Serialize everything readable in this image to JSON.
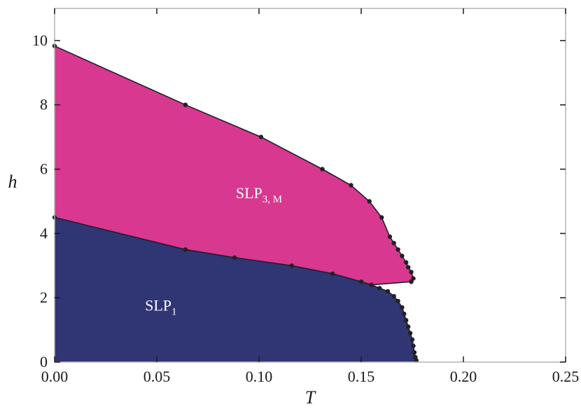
{
  "chart_data": {
    "type": "area",
    "xlabel": "T",
    "ylabel": "h",
    "xlim": [
      0.0,
      0.25
    ],
    "ylim": [
      0,
      11
    ],
    "xticks": [
      "0.00",
      "0.05",
      "0.10",
      "0.15",
      "0.20",
      "0.25"
    ],
    "yticks": [
      "0",
      "2",
      "4",
      "6",
      "8",
      "10"
    ],
    "grid": false,
    "regions": [
      {
        "label": "SLP",
        "subscript": "1",
        "color": "#303573",
        "label_at": [
          0.052,
          1.6
        ]
      },
      {
        "label": "SLP",
        "subscript": "3, M",
        "color": "#d8388f",
        "label_at": [
          0.1,
          5.1
        ]
      }
    ],
    "series": [
      {
        "values": [
          [
            0.0,
            9.83
          ],
          [
            0.064,
            8.0
          ],
          [
            0.101,
            7.0
          ],
          [
            0.131,
            6.0
          ],
          [
            0.145,
            5.5
          ],
          [
            0.154,
            5.0
          ],
          [
            0.16,
            4.5
          ],
          [
            0.164,
            3.9
          ],
          [
            0.166,
            3.7
          ],
          [
            0.168,
            3.5
          ],
          [
            0.17,
            3.3
          ],
          [
            0.172,
            3.1
          ],
          [
            0.173,
            2.95
          ],
          [
            0.1745,
            2.8
          ],
          [
            0.1755,
            2.6
          ],
          [
            0.1745,
            2.5
          ]
        ]
      },
      {
        "values": [
          [
            0.0,
            4.5
          ],
          [
            0.064,
            3.5
          ],
          [
            0.088,
            3.25
          ],
          [
            0.116,
            3.0
          ],
          [
            0.136,
            2.75
          ],
          [
            0.15,
            2.5
          ],
          [
            0.155,
            2.4
          ],
          [
            0.1745,
            2.5
          ]
        ]
      },
      {
        "values": [
          [
            0.155,
            2.4
          ],
          [
            0.159,
            2.3
          ],
          [
            0.163,
            2.2
          ],
          [
            0.166,
            2.05
          ],
          [
            0.168,
            1.9
          ],
          [
            0.17,
            1.7
          ],
          [
            0.171,
            1.5
          ],
          [
            0.172,
            1.3
          ],
          [
            0.173,
            1.1
          ],
          [
            0.174,
            0.9
          ],
          [
            0.175,
            0.7
          ],
          [
            0.1755,
            0.5
          ],
          [
            0.176,
            0.3
          ],
          [
            0.1765,
            0.15
          ],
          [
            0.177,
            0.05
          ]
        ]
      }
    ]
  }
}
